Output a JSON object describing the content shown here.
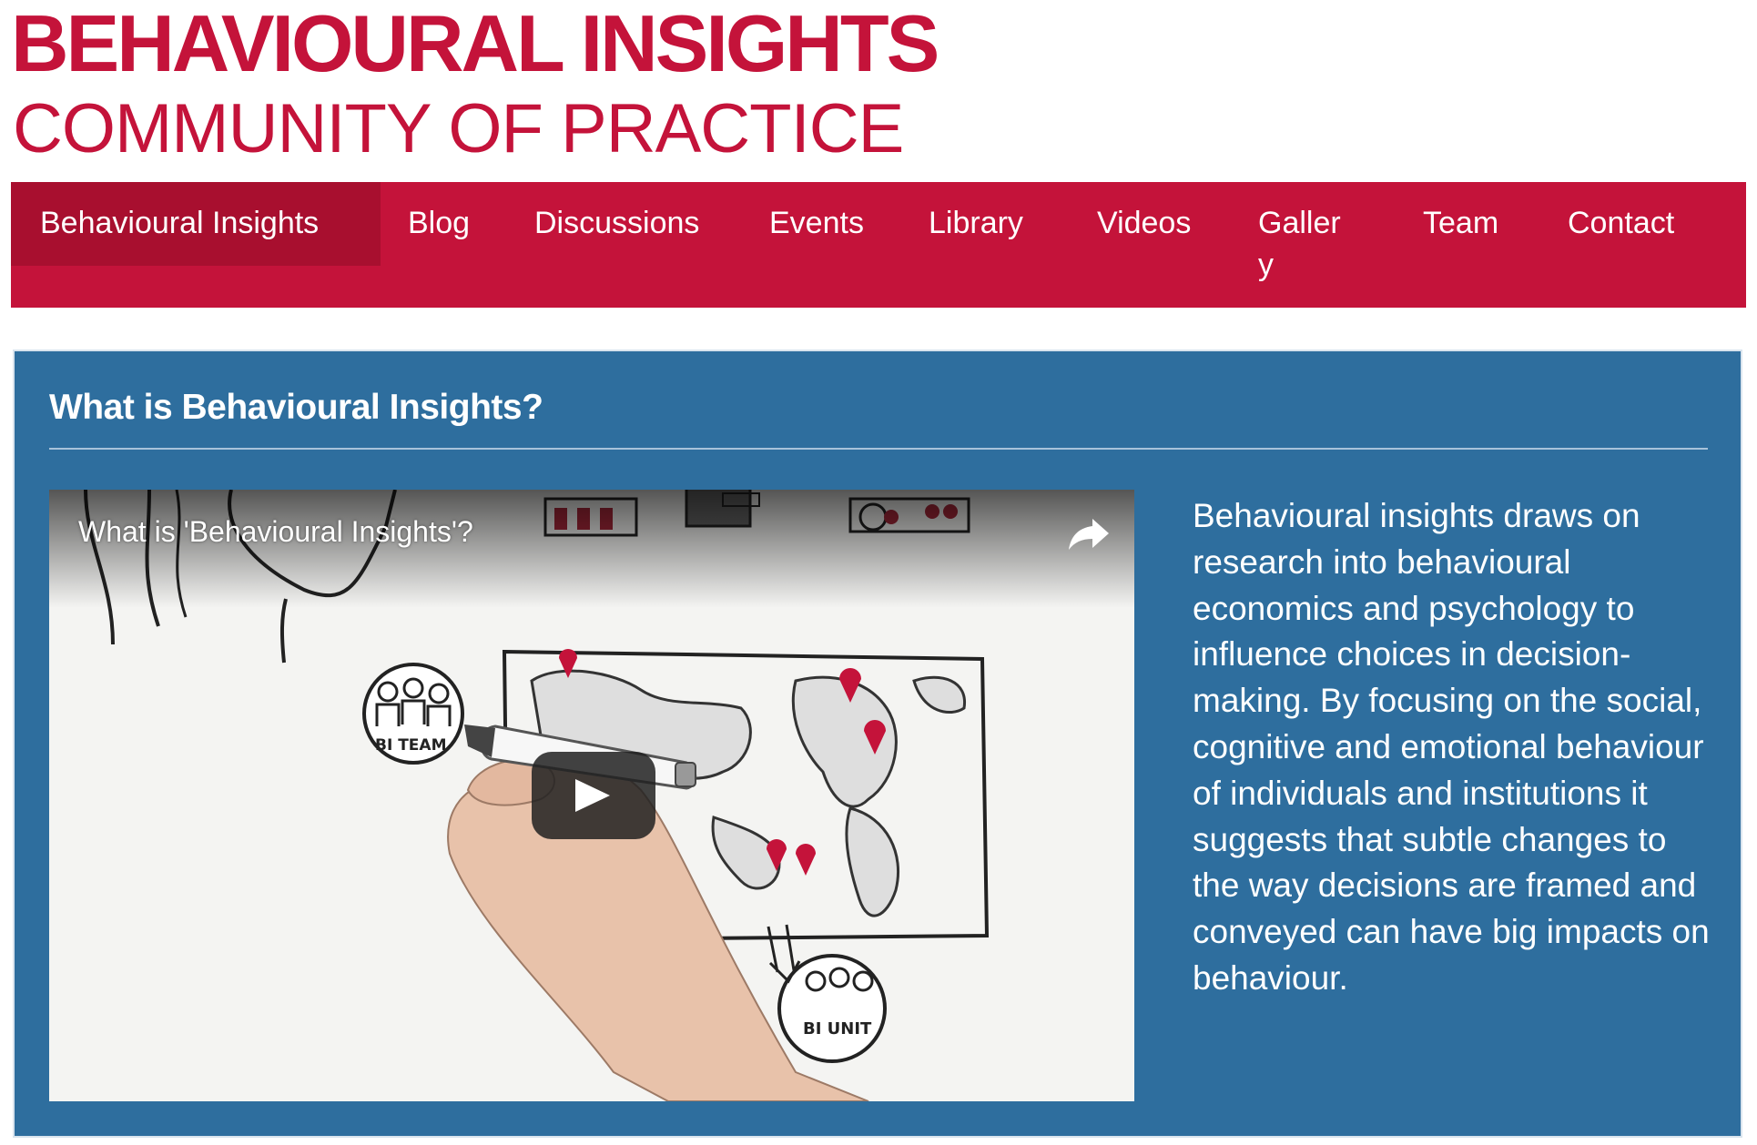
{
  "header": {
    "title": "BEHAVIOURAL INSIGHTS",
    "subtitle": "COMMUNITY OF PRACTICE"
  },
  "nav": {
    "items": [
      {
        "label": "Behavioural Insights",
        "active": true
      },
      {
        "label": "Blog"
      },
      {
        "label": "Discussions"
      },
      {
        "label": "Events"
      },
      {
        "label": "Library"
      },
      {
        "label": "Videos"
      },
      {
        "label_line1": "Galler",
        "label_line2": "y"
      },
      {
        "label": "Team"
      },
      {
        "label": "Contact"
      }
    ]
  },
  "main": {
    "heading": "What is Behavioural Insights?",
    "video": {
      "title": "What is 'Behavioural Insights'?",
      "icons": [
        "share-icon",
        "play-icon"
      ],
      "illustration_labels": [
        "BI TEAM",
        "BI UNIT"
      ]
    },
    "description": "Behavioural insights draws on research into behavioural economics and psychology to influence choices in decision-making. By focusing on the social, cognitive and emotional behaviour of individuals and institutions it suggests that subtle changes to the way decisions are framed and conveyed can have big impacts on behaviour."
  },
  "colors": {
    "brand_red": "#c4133a",
    "nav_active": "#a80f2f",
    "panel_blue": "#2e6e9e",
    "white": "#ffffff"
  }
}
